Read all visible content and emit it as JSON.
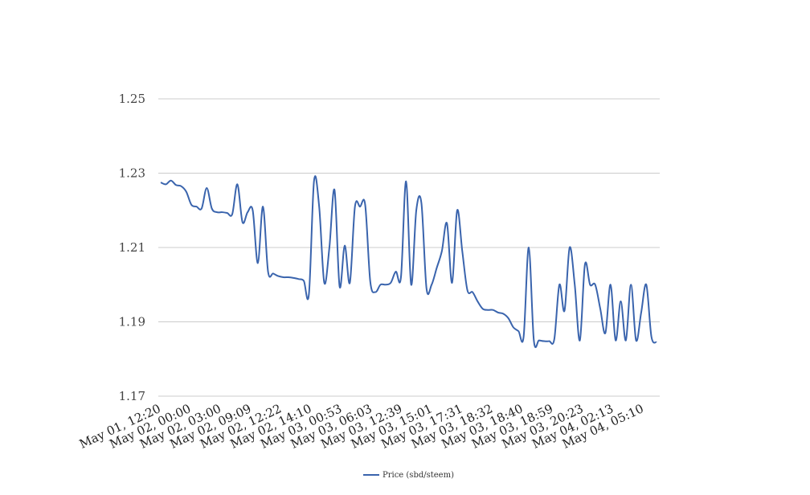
{
  "chart_data": {
    "type": "line",
    "title": "",
    "xlabel": "",
    "ylabel": "",
    "ylim": [
      1.17,
      1.25
    ],
    "yticks": [
      "1.25",
      "1.23",
      "1.21",
      "1.19",
      "1.17"
    ],
    "ytick_values": [
      1.25,
      1.23,
      1.21,
      1.19,
      1.17
    ],
    "grid": true,
    "legend_position": "bottom-center",
    "xtick_labels": [
      "May 01, 12:20",
      "May 02, 00:00",
      "May 02, 03:00",
      "May 02, 09:09",
      "May 02, 12:22",
      "May 02, 14:10",
      "May 03, 00:53",
      "May 03, 06:03",
      "May 03, 12:39",
      "May 03, 15:01",
      "May 03, 17:31",
      "May 03, 18:32",
      "May 03, 18:40",
      "May 03, 18:59",
      "May 03, 20:23",
      "May 04, 02:13",
      "May 04, 05:10"
    ],
    "series": [
      {
        "name": "Price (sbd/steem)",
        "color": "#3a64ad",
        "values": [
          1.2275,
          1.227,
          1.228,
          1.2268,
          1.2265,
          1.225,
          1.2215,
          1.221,
          1.2205,
          1.226,
          1.2205,
          1.2195,
          1.2195,
          1.2193,
          1.219,
          1.227,
          1.2168,
          1.2195,
          1.22,
          1.2058,
          1.221,
          1.2035,
          1.203,
          1.2023,
          1.202,
          1.202,
          1.2018,
          1.2015,
          1.201,
          1.1975,
          1.228,
          1.221,
          1.2005,
          1.21,
          1.2255,
          1.1995,
          1.2105,
          1.2005,
          1.221,
          1.221,
          1.2215,
          1.2008,
          1.198,
          1.2,
          1.2,
          1.2005,
          1.2035,
          1.202,
          1.2278,
          1.2,
          1.22,
          1.222,
          1.199,
          1.2,
          1.2045,
          1.209,
          1.2165,
          1.2005,
          1.22,
          1.209,
          1.1985,
          1.198,
          1.1955,
          1.1935,
          1.1932,
          1.1932,
          1.1925,
          1.1922,
          1.191,
          1.1885,
          1.1875,
          1.186,
          1.21,
          1.185,
          1.185,
          1.1848,
          1.1848,
          1.1853,
          1.2,
          1.193,
          1.21,
          1.2,
          1.185,
          1.2055,
          1.2,
          1.2,
          1.1935,
          1.187,
          1.2,
          1.185,
          1.1955,
          1.185,
          1.2,
          1.185,
          1.1925,
          1.2,
          1.186,
          1.1845
        ]
      }
    ]
  }
}
